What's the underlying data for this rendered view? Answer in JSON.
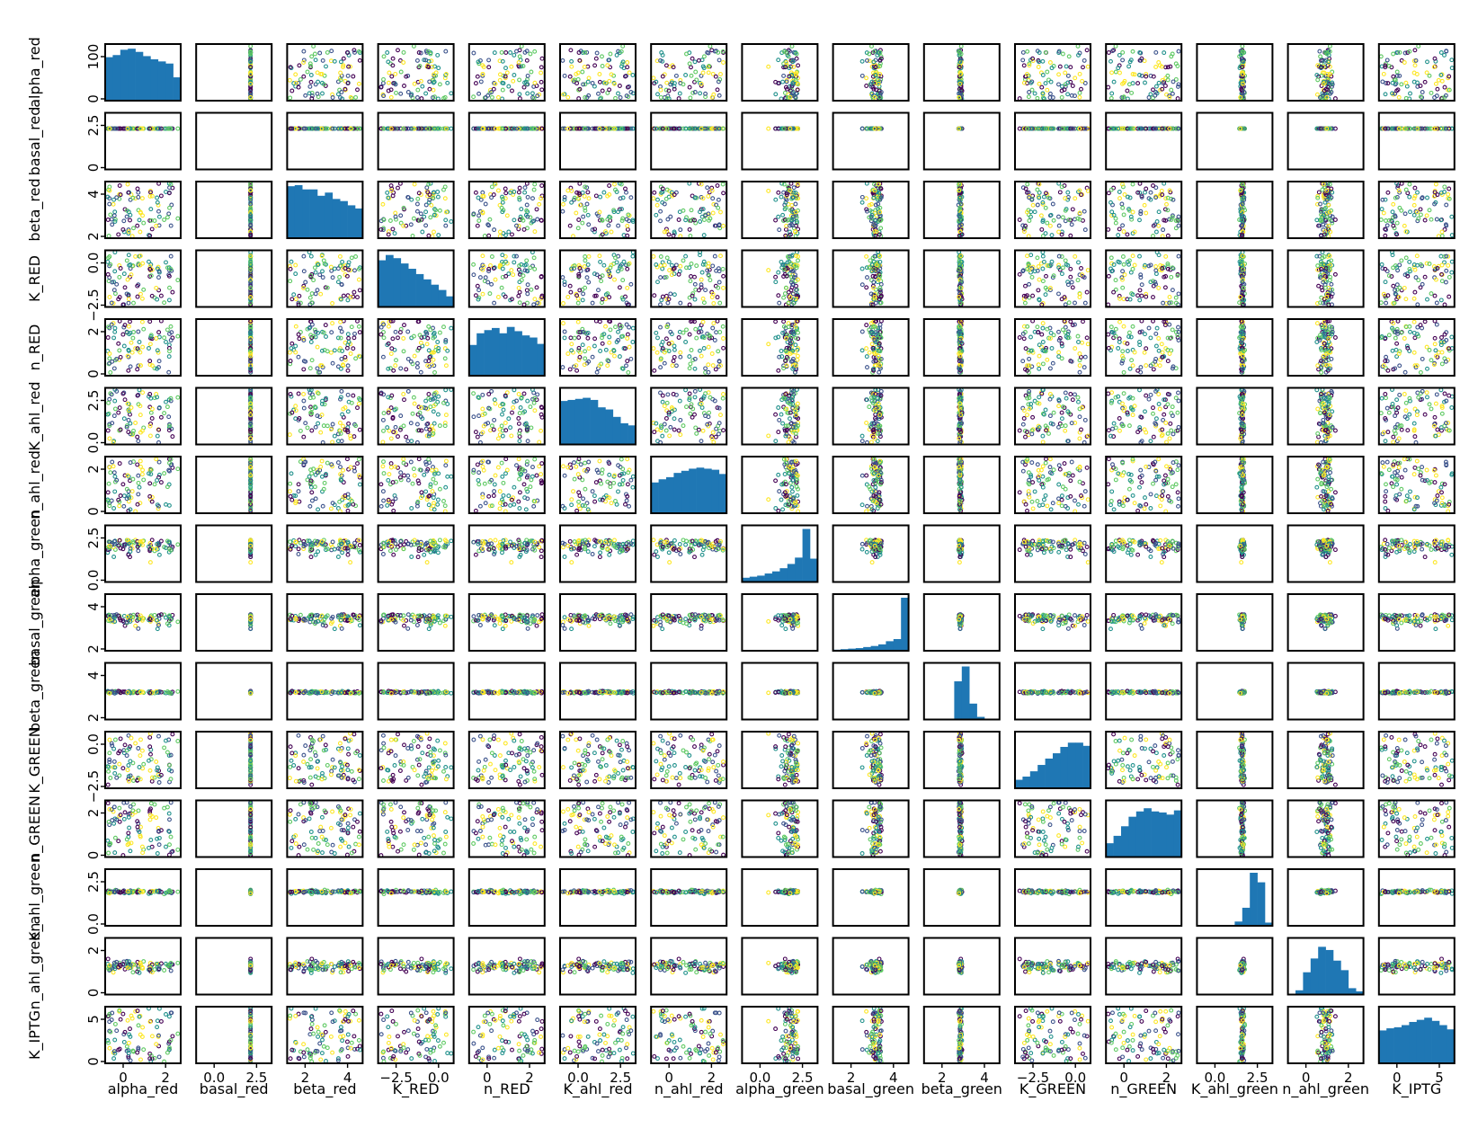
{
  "chart_data": {
    "type": "scatter",
    "variables": [
      "alpha_red",
      "basal_red",
      "beta_red",
      "K_RED",
      "n_RED",
      "K_ahl_red",
      "n_ahl_red",
      "alpha_green",
      "basal_green",
      "beta_green",
      "K_GREEN",
      "n_GREEN",
      "K_ahl_green",
      "n_ahl_green",
      "K_IPTG"
    ],
    "x_axis_labels": [
      "alpha_red",
      "basal_red",
      "beta_red",
      "K_RED",
      "n_RED",
      "K_ahl_red",
      "n_ahl_red",
      "alpha_green",
      "basal_green",
      "beta_green",
      "K_GREEN",
      "n_GREEN",
      "K_ahl_green",
      "n_ahl_green",
      "K_IPTG"
    ],
    "y_axis_labels": [
      "alpha_red",
      "basal_red",
      "beta_red",
      "K_RED",
      "n_RED",
      "K_ahl_red",
      "n_ahl_red",
      "alpha_green",
      "basal_green",
      "beta_green",
      "K_GREEN",
      "n_GREEN",
      "K_ahl_green",
      "n_ahl_green",
      "K_IPTG"
    ],
    "x_tick_labels": [
      [
        "0",
        "2"
      ],
      [
        "0.0",
        "2.5"
      ],
      [
        "2",
        "4"
      ],
      [
        "−2.5",
        "0.0"
      ],
      [
        "0",
        "2"
      ],
      [
        "0.0",
        "2.5"
      ],
      [
        "0",
        "2"
      ],
      [
        "0.0",
        "2.5"
      ],
      [
        "2",
        "4"
      ],
      [
        "2",
        "4"
      ],
      [
        "−2.5",
        "0.0"
      ],
      [
        "0",
        "2"
      ],
      [
        "0.0",
        "2.5"
      ],
      [
        "0",
        "2"
      ],
      [
        "0",
        "5"
      ]
    ],
    "y_tick_labels": [
      [
        "0",
        "100"
      ],
      [
        "0",
        "2.5"
      ],
      [
        "2",
        "4"
      ],
      [
        "−2.5",
        "0.0"
      ],
      [
        "0",
        "2"
      ],
      [
        "0.0",
        "2.5"
      ],
      [
        "0",
        "2"
      ],
      [
        "0.0",
        "2.5"
      ],
      [
        "2",
        "4"
      ],
      [
        "2",
        "4"
      ],
      [
        "−2.5",
        "0.0"
      ],
      [
        "0",
        "2"
      ],
      [
        "0.0",
        "2.5"
      ],
      [
        "0",
        "2"
      ],
      [
        "0",
        "5"
      ]
    ],
    "diagonal": "histogram",
    "histogram_color": "#1f77b4",
    "point_colormap": [
      "#440154",
      "#3b528b",
      "#21918c",
      "#5ec962",
      "#fde725"
    ],
    "histogram_counts": [
      [
        0.82,
        0.86,
        0.96,
        0.98,
        0.92,
        0.84,
        0.78,
        0.74,
        0.7,
        0.44
      ],
      [
        0,
        0,
        0,
        0,
        0,
        0,
        0,
        0,
        0,
        0
      ],
      [
        0.98,
        1.0,
        0.92,
        0.92,
        0.8,
        0.86,
        0.74,
        0.7,
        0.62,
        0.56
      ],
      [
        0.88,
        0.98,
        0.92,
        0.82,
        0.72,
        0.62,
        0.52,
        0.42,
        0.32,
        0.2
      ],
      [
        0.58,
        0.8,
        0.86,
        0.9,
        0.8,
        0.92,
        0.84,
        0.76,
        0.72,
        0.6
      ],
      [
        0.82,
        0.84,
        0.86,
        0.88,
        0.84,
        0.7,
        0.66,
        0.52,
        0.4,
        0.36
      ],
      [
        0.58,
        0.64,
        0.68,
        0.76,
        0.8,
        0.84,
        0.86,
        0.84,
        0.82,
        0.74
      ],
      [
        0.08,
        0.1,
        0.12,
        0.16,
        0.2,
        0.26,
        0.34,
        0.46,
        1.0,
        0.44
      ],
      [
        0.02,
        0.03,
        0.04,
        0.05,
        0.07,
        0.09,
        0.12,
        0.18,
        0.22,
        1.0
      ],
      [
        0,
        0,
        0,
        0,
        0.72,
        1.0,
        0.3,
        0.05,
        0,
        0
      ],
      [
        0.16,
        0.22,
        0.32,
        0.44,
        0.56,
        0.66,
        0.78,
        0.86,
        0.86,
        0.8
      ],
      [
        0.26,
        0.4,
        0.58,
        0.76,
        0.86,
        0.92,
        0.86,
        0.84,
        0.8,
        0.88
      ],
      [
        0,
        0,
        0,
        0,
        0,
        0.08,
        0.34,
        1.0,
        0.82,
        0.06
      ],
      [
        0,
        0.08,
        0.42,
        0.68,
        0.9,
        0.84,
        0.64,
        0.46,
        0.12,
        0.06
      ],
      [
        0.62,
        0.66,
        0.68,
        0.72,
        0.78,
        0.82,
        0.86,
        0.8,
        0.72,
        0.64
      ]
    ],
    "marginal_shape": [
      "uniform",
      "constant",
      "uniform",
      "uniform",
      "uniform",
      "uniform",
      "uniform",
      "skew_right",
      "skew_right",
      "narrow",
      "uniform",
      "uniform",
      "narrow",
      "peaked",
      "uniform"
    ],
    "constant_position": [
      0.5,
      0.72,
      0.5,
      0.5,
      0.5,
      0.5,
      0.5,
      0.72,
      0.62,
      0.5,
      0.5,
      0.5,
      0.65,
      0.5,
      0.5
    ],
    "spread": [
      0.5,
      0.0,
      0.5,
      0.5,
      0.5,
      0.5,
      0.5,
      0.18,
      0.12,
      0.035,
      0.5,
      0.5,
      0.05,
      0.2,
      0.5
    ],
    "center": [
      0.5,
      0.72,
      0.5,
      0.5,
      0.5,
      0.5,
      0.5,
      0.68,
      0.6,
      0.48,
      0.5,
      0.5,
      0.6,
      0.5,
      0.5
    ],
    "grid": false,
    "legend": "none"
  }
}
